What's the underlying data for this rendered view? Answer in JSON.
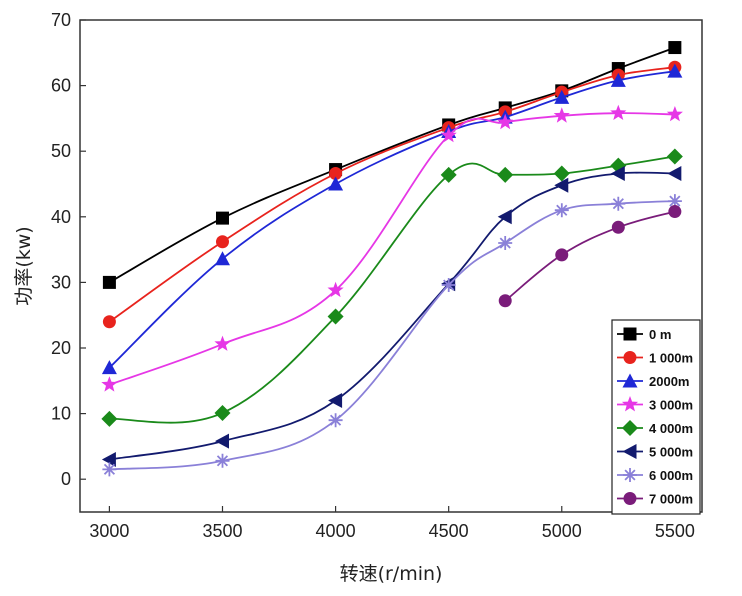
{
  "chart_data": {
    "type": "line",
    "title": "",
    "xlabel": "转速(r/min)",
    "ylabel": "功率(kw)",
    "xlim": [
      2870,
      5620
    ],
    "ylim": [
      -5,
      70
    ],
    "x_ticks": [
      3000,
      3500,
      4000,
      4500,
      5000,
      5500
    ],
    "x_tick_labels": [
      "3000",
      "3500",
      "4000",
      "4500",
      "5000",
      "5500"
    ],
    "y_ticks": [
      0,
      10,
      20,
      30,
      40,
      50,
      60,
      70
    ],
    "y_tick_labels": [
      "0",
      "10",
      "20",
      "30",
      "40",
      "50",
      "60",
      "70"
    ],
    "legend_position": "bottom-right",
    "series": [
      {
        "name": "0 m",
        "color": "#000000",
        "marker": "square",
        "x": [
          3000,
          3500,
          4000,
          4500,
          4750,
          5000,
          5250,
          5500
        ],
        "values": [
          30,
          39.8,
          47.2,
          54,
          56.6,
          59.2,
          62.6,
          65.8
        ]
      },
      {
        "name": "1 000m",
        "color": "#e8231d",
        "marker": "circle",
        "x": [
          3000,
          3500,
          4000,
          4500,
          4750,
          5000,
          5250,
          5500
        ],
        "values": [
          24,
          36.2,
          46.6,
          53.6,
          56,
          59,
          61.6,
          62.8
        ]
      },
      {
        "name": "2000m",
        "color": "#1f28d6",
        "marker": "triangle-up",
        "x": [
          3000,
          3500,
          4000,
          4500,
          4750,
          5000,
          5250,
          5500
        ],
        "values": [
          17,
          33.6,
          45,
          53,
          55.2,
          58.2,
          60.8,
          62.2
        ]
      },
      {
        "name": "3 000m",
        "color": "#e637e6",
        "marker": "star",
        "x": [
          3000,
          3500,
          4000,
          4500,
          4750,
          5000,
          5250,
          5500
        ],
        "values": [
          14.4,
          20.6,
          28.8,
          52.4,
          54.4,
          55.4,
          55.8,
          55.6
        ]
      },
      {
        "name": "4 000m",
        "color": "#1a8a1a",
        "marker": "diamond",
        "x": [
          3000,
          3500,
          4000,
          4500,
          4750,
          5000,
          5250,
          5500
        ],
        "values": [
          9.2,
          10.1,
          24.8,
          46.4,
          46.4,
          46.6,
          47.8,
          49.2
        ]
      },
      {
        "name": "5 000m",
        "color": "#121a6e",
        "marker": "triangle-left",
        "x": [
          3000,
          3500,
          4000,
          4500,
          4750,
          5000,
          5250,
          5500
        ],
        "values": [
          3,
          5.8,
          12,
          29.8,
          40,
          44.8,
          46.6,
          46.6
        ]
      },
      {
        "name": "6 000m",
        "color": "#8a80d8",
        "marker": "asterisk",
        "x": [
          3000,
          3500,
          4000,
          4500,
          4750,
          5000,
          5250,
          5500
        ],
        "values": [
          1.5,
          2.8,
          9,
          29.6,
          36,
          41,
          42,
          42.4
        ]
      },
      {
        "name": "7 000m",
        "color": "#7a1c7a",
        "marker": "circle",
        "x": [
          4750,
          5000,
          5250,
          5500
        ],
        "values": [
          27.2,
          34.2,
          38.4,
          40.8
        ]
      }
    ]
  }
}
